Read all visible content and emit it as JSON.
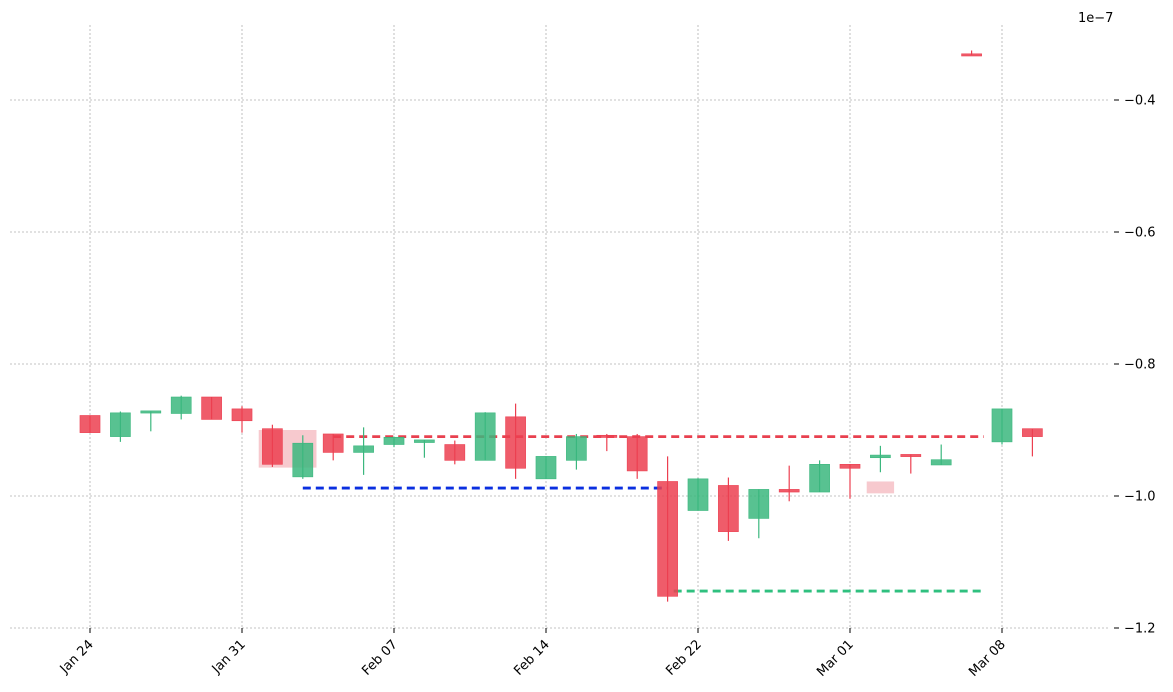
{
  "chart_data": {
    "type": "candlestick",
    "scale_label": "1e−7",
    "ylim": [
      -1.2e-07,
      -2.8e-08
    ],
    "yticks": [
      {
        "value": -4e-08,
        "label": "−0.4"
      },
      {
        "value": -6e-08,
        "label": "−0.6"
      },
      {
        "value": -8e-08,
        "label": "−0.8"
      },
      {
        "value": -1e-07,
        "label": "−1.0"
      },
      {
        "value": -1.2e-07,
        "label": "−1.2"
      }
    ],
    "xticks": [
      {
        "date": "2024-01-24",
        "label": "Jan 24"
      },
      {
        "date": "2024-01-31",
        "label": "Jan 31"
      },
      {
        "date": "2024-02-07",
        "label": "Feb 07"
      },
      {
        "date": "2024-02-14",
        "label": "Feb 14"
      },
      {
        "date": "2024-02-22",
        "label": "Feb 22"
      },
      {
        "date": "2024-03-01",
        "label": "Mar 01"
      },
      {
        "date": "2024-03-08",
        "label": "Mar 08"
      }
    ],
    "grid": true,
    "colors": {
      "up": "#3bb77e",
      "down": "#ec3f50",
      "blue_line": "#0a2fe0",
      "green_line": "#2fc07f",
      "red_line": "#e8404f",
      "highlight": "#f4b7be"
    },
    "candles": [
      {
        "date": "2024-01-24",
        "open": -8.78e-08,
        "high": -8.78e-08,
        "low": -9.04e-08,
        "close": -9.04e-08
      },
      {
        "date": "2024-01-25",
        "open": -9.1e-08,
        "high": -8.72e-08,
        "low": -9.18e-08,
        "close": -8.74e-08
      },
      {
        "date": "2024-01-26",
        "open": -8.74e-08,
        "high": -8.72e-08,
        "low": -9.02e-08,
        "close": -8.71e-08
      },
      {
        "date": "2024-01-27",
        "open": -8.75e-08,
        "high": -8.48e-08,
        "low": -8.84e-08,
        "close": -8.5e-08
      },
      {
        "date": "2024-01-28",
        "open": -8.5e-08,
        "high": -8.5e-08,
        "low": -8.84e-08,
        "close": -8.84e-08
      },
      {
        "date": "2024-01-29",
        "open": -8.68e-08,
        "high": -8.64e-08,
        "low": -9.04e-08,
        "close": -8.86e-08
      },
      {
        "date": "2024-01-30",
        "open": -8.98e-08,
        "high": -8.92e-08,
        "low": -9.56e-08,
        "close": -9.52e-08
      },
      {
        "date": "2024-01-31",
        "open": -9.71e-08,
        "high": -9.08e-08,
        "low": -9.74e-08,
        "close": -9.2e-08
      },
      {
        "date": "2024-02-01",
        "open": -9.06e-08,
        "high": -9.06e-08,
        "low": -9.46e-08,
        "close": -9.34e-08
      },
      {
        "date": "2024-02-02",
        "open": -9.34e-08,
        "high": -8.96e-08,
        "low": -9.68e-08,
        "close": -9.24e-08
      },
      {
        "date": "2024-02-03",
        "open": -9.22e-08,
        "high": -9.1e-08,
        "low": -9.26e-08,
        "close": -9.11e-08
      },
      {
        "date": "2024-02-04",
        "open": -9.19e-08,
        "high": -9.15e-08,
        "low": -9.42e-08,
        "close": -9.15e-08
      },
      {
        "date": "2024-02-05",
        "open": -9.22e-08,
        "high": -9.16e-08,
        "low": -9.52e-08,
        "close": -9.46e-08
      },
      {
        "date": "2024-02-06",
        "open": -9.46e-08,
        "high": -8.73e-08,
        "low": -9.46e-08,
        "close": -8.74e-08
      },
      {
        "date": "2024-02-07",
        "open": -8.8e-08,
        "high": -8.6e-08,
        "low": -9.74e-08,
        "close": -9.58e-08
      },
      {
        "date": "2024-02-08",
        "open": -9.74e-08,
        "high": -9.4e-08,
        "low": -9.74e-08,
        "close": -9.4e-08
      },
      {
        "date": "2024-02-09",
        "open": -9.46e-08,
        "high": -9.06e-08,
        "low": -9.6e-08,
        "close": -9.1e-08
      },
      {
        "date": "2024-02-10",
        "open": -9.08e-08,
        "high": -9.06e-08,
        "low": -9.32e-08,
        "close": -9.1e-08
      },
      {
        "date": "2024-02-11",
        "open": -9.1e-08,
        "high": -9.06e-08,
        "low": -9.74e-08,
        "close": -9.62e-08
      },
      {
        "date": "2024-02-12",
        "open": -9.78e-08,
        "high": -9.4e-08,
        "low": -1.16e-07,
        "close": -1.152e-07
      },
      {
        "date": "2024-02-13",
        "open": -1.022e-07,
        "high": -9.73e-08,
        "low": -1.022e-07,
        "close": -9.74e-08
      },
      {
        "date": "2024-02-14",
        "open": -9.84e-08,
        "high": -9.72e-08,
        "low": -1.068e-07,
        "close": -1.054e-07
      },
      {
        "date": "2024-02-15",
        "open": -1.034e-07,
        "high": -9.9e-08,
        "low": -1.064e-07,
        "close": -9.9e-08
      },
      {
        "date": "2024-02-16",
        "open": -9.9e-08,
        "high": -9.54e-08,
        "low": -1.008e-07,
        "close": -9.94e-08
      },
      {
        "date": "2024-02-17",
        "open": -9.94e-08,
        "high": -9.46e-08,
        "low": -9.94e-08,
        "close": -9.52e-08
      },
      {
        "date": "2024-02-18",
        "open": -9.52e-08,
        "high": -9.52e-08,
        "low": -1.004e-07,
        "close": -9.58e-08
      },
      {
        "date": "2024-02-19",
        "open": -9.42e-08,
        "high": -9.24e-08,
        "low": -9.64e-08,
        "close": -9.38e-08
      },
      {
        "date": "2024-02-20",
        "open": -9.37e-08,
        "high": -9.37e-08,
        "low": -9.66e-08,
        "close": -9.38e-08
      },
      {
        "date": "2024-02-21",
        "open": -9.53e-08,
        "high": -9.22e-08,
        "low": -9.53e-08,
        "close": -9.45e-08
      },
      {
        "date": "2024-02-22",
        "open": -3.3e-08,
        "high": -3.25e-08,
        "low": -3.32e-08,
        "close": -3.33e-08
      },
      {
        "date": "2024-02-23",
        "open": -9.18e-08,
        "high": -8.68e-08,
        "low": -9.22e-08,
        "close": -8.68e-08
      },
      {
        "date": "2024-02-24",
        "open": -8.98e-08,
        "high": -8.98e-08,
        "low": -9.4e-08,
        "close": -9.1e-08
      }
    ],
    "highlights": [
      {
        "date": "2024-01-30",
        "span_days": 2,
        "top": -9e-08,
        "bottom": -9.57e-08
      },
      {
        "date": "2024-02-19",
        "span_days": 1,
        "top": -9.78e-08,
        "bottom": -9.96e-08
      }
    ],
    "levels": [
      {
        "name": "red",
        "value": -9.1e-08,
        "from": "2024-01-31",
        "to": "2024-02-22"
      },
      {
        "name": "blue",
        "value": -9.88e-08,
        "from": "2024-01-31",
        "to": "2024-02-12"
      },
      {
        "name": "green",
        "value": -1.144e-07,
        "from": "2024-02-12",
        "to": "2024-02-22"
      }
    ]
  }
}
